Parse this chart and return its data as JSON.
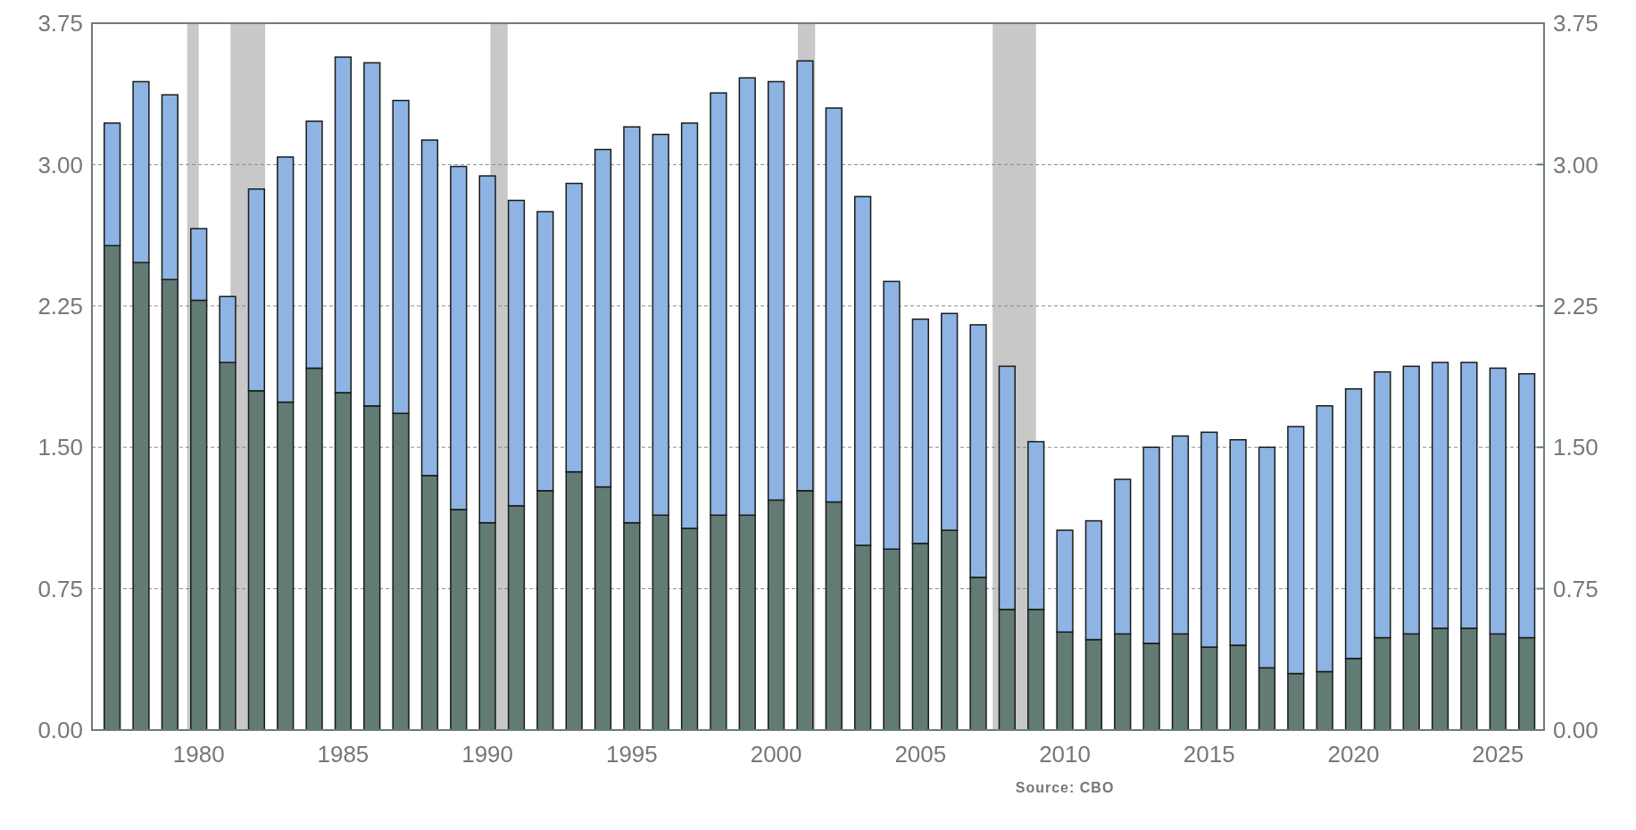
{
  "chart_data": {
    "type": "bar",
    "stacked": true,
    "x": [
      1977,
      1978,
      1979,
      1980,
      1981,
      1982,
      1983,
      1984,
      1985,
      1986,
      1987,
      1988,
      1989,
      1990,
      1991,
      1992,
      1993,
      1994,
      1995,
      1996,
      1997,
      1998,
      1999,
      2000,
      2001,
      2002,
      2003,
      2004,
      2005,
      2006,
      2007,
      2008,
      2009,
      2010,
      2011,
      2012,
      2013,
      2014,
      2015,
      2016,
      2017,
      2018,
      2019,
      2020,
      2021,
      2022,
      2023,
      2024,
      2025,
      2026
    ],
    "series": [
      {
        "color": "#627b75",
        "values": [
          2.57,
          2.48,
          2.39,
          2.28,
          1.95,
          1.8,
          1.74,
          1.92,
          1.79,
          1.72,
          1.68,
          1.35,
          1.17,
          1.1,
          1.19,
          1.27,
          1.37,
          1.29,
          1.1,
          1.14,
          1.07,
          1.14,
          1.14,
          1.22,
          1.27,
          1.21,
          0.98,
          0.96,
          0.99,
          1.06,
          0.81,
          0.64,
          0.64,
          0.52,
          0.48,
          0.51,
          0.46,
          0.51,
          0.44,
          0.45,
          0.33,
          0.3,
          0.31,
          0.38,
          0.49,
          0.51,
          0.54,
          0.54,
          0.51,
          0.49
        ]
      },
      {
        "color": "#8db4e2",
        "values": [
          0.65,
          0.96,
          0.98,
          0.38,
          0.35,
          1.07,
          1.3,
          1.31,
          1.78,
          1.82,
          1.66,
          1.78,
          1.82,
          1.84,
          1.62,
          1.48,
          1.53,
          1.79,
          2.1,
          2.02,
          2.15,
          2.24,
          2.32,
          2.22,
          2.28,
          2.09,
          1.85,
          1.42,
          1.19,
          1.15,
          1.34,
          1.29,
          0.89,
          0.54,
          0.63,
          0.82,
          1.04,
          1.05,
          1.14,
          1.09,
          1.17,
          1.31,
          1.41,
          1.43,
          1.41,
          1.42,
          1.41,
          1.41,
          1.41,
          1.4
        ]
      }
    ],
    "xlim": [
      1976.3,
      2026.6
    ],
    "xticks": [
      1980,
      1985,
      1990,
      1995,
      2000,
      2005,
      2010,
      2015,
      2020,
      2025
    ],
    "ylim": [
      0,
      3.75
    ],
    "yticks": [
      {
        "value": 0,
        "label": "0.00"
      },
      {
        "value": 0.75,
        "label": "0.75"
      },
      {
        "value": 1.5,
        "label": "1.50"
      },
      {
        "value": 2.25,
        "label": "2.25"
      },
      {
        "value": 3,
        "label": "3.00"
      },
      {
        "value": 3.75,
        "label": "3.75"
      }
    ],
    "y2lim": [
      0,
      3.75
    ],
    "y2ticks": [
      {
        "value": 0,
        "label": "0.00"
      },
      {
        "value": 0.75,
        "label": "0.75"
      },
      {
        "value": 1.5,
        "label": "1.50"
      },
      {
        "value": 2.25,
        "label": "2.25"
      },
      {
        "value": 3,
        "label": "3.00"
      },
      {
        "value": 3.75,
        "label": "3.75"
      }
    ],
    "grid": "y",
    "bands": [
      {
        "axis": "x",
        "from": 1979.6,
        "to": 1980.0,
        "color": "#c8c8c8"
      },
      {
        "axis": "x",
        "from": 1981.1,
        "to": 1982.3,
        "color": "#c8c8c8"
      },
      {
        "axis": "x",
        "from": 1990.1,
        "to": 1990.7,
        "color": "#c8c8c8"
      },
      {
        "axis": "x",
        "from": 2000.75,
        "to": 2001.35,
        "color": "#c8c8c8"
      },
      {
        "axis": "x",
        "from": 2007.5,
        "to": 2009.0,
        "color": "#c8c8c8"
      }
    ],
    "annotations": [
      "Source: CBO"
    ]
  }
}
